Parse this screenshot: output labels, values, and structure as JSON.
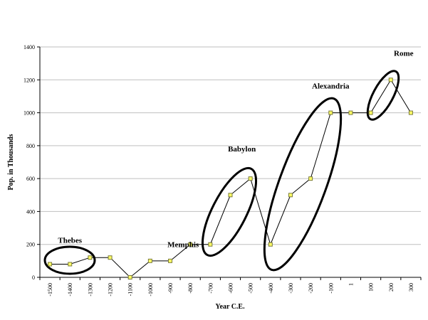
{
  "chart_data": {
    "type": "line",
    "categories": [
      "-1500",
      "-1400",
      "-1300",
      "-1200",
      "-1100",
      "-1000",
      "-900",
      "-800",
      "-700",
      "-600",
      "-500",
      "-400",
      "-300",
      "-200",
      "-100",
      "1",
      "100",
      "200",
      "300"
    ],
    "series": [
      {
        "values": [
          80,
          80,
          120,
          120,
          0,
          100,
          100,
          200,
          200,
          500,
          600,
          200,
          500,
          600,
          1000,
          1000,
          1000,
          1200,
          1000
        ]
      }
    ],
    "xlabel": "Year C.E.",
    "ylabel": "Pop. in Thousands",
    "ylim": [
      0,
      1400
    ],
    "yticks": [
      0,
      200,
      400,
      600,
      800,
      1000,
      1200,
      1400
    ],
    "grid": true,
    "annotations": [
      {
        "text": "Thebes",
        "category": "-1400",
        "value": 80
      },
      {
        "text": "Memphis",
        "category": "-800",
        "value": 200
      },
      {
        "text": "Babylon",
        "category": "-500",
        "value": 600
      },
      {
        "text": "Alexandria",
        "category": "-100",
        "value": 1000
      },
      {
        "text": "Rome",
        "category": "200",
        "value": 1200
      }
    ],
    "colors": {
      "line": "#000000",
      "marker_fill": "#ffff66",
      "marker_stroke": "#7a7a3a",
      "grid": "#bfbfbf"
    }
  }
}
